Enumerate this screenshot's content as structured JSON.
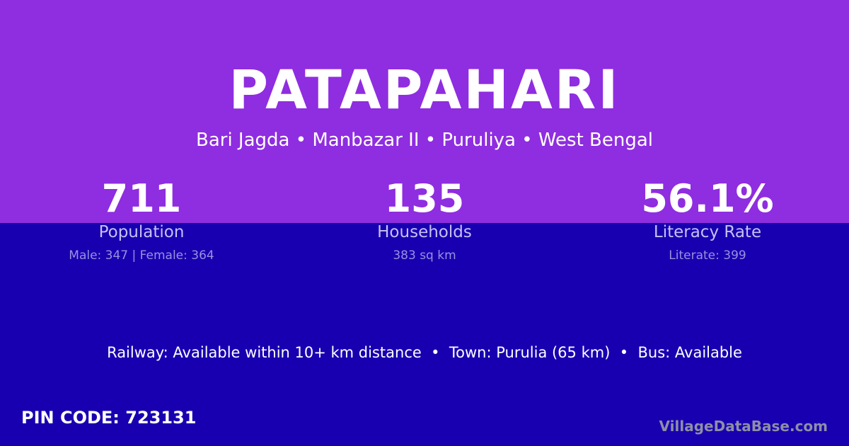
{
  "title": "PATAPAHARI",
  "subtitle": "Bari Jagda • Manbazar II • Puruliya • West Bengal",
  "stats": [
    {
      "value": "711",
      "label": "Population",
      "detail": "Male: 347 | Female: 364"
    },
    {
      "value": "135",
      "label": "Households",
      "detail": "383 sq km"
    },
    {
      "value": "56.1%",
      "label": "Literacy Rate",
      "detail": "Literate: 399"
    }
  ],
  "info": "Railway: Available within 10+ km distance  •  Town: Purulia (65 km)  •  Bus: Available",
  "pin": "PIN CODE: 723131",
  "brand": "VillageDataBase.com",
  "colors": {
    "top": "#8f2de0",
    "bottom": "#1800b0"
  }
}
